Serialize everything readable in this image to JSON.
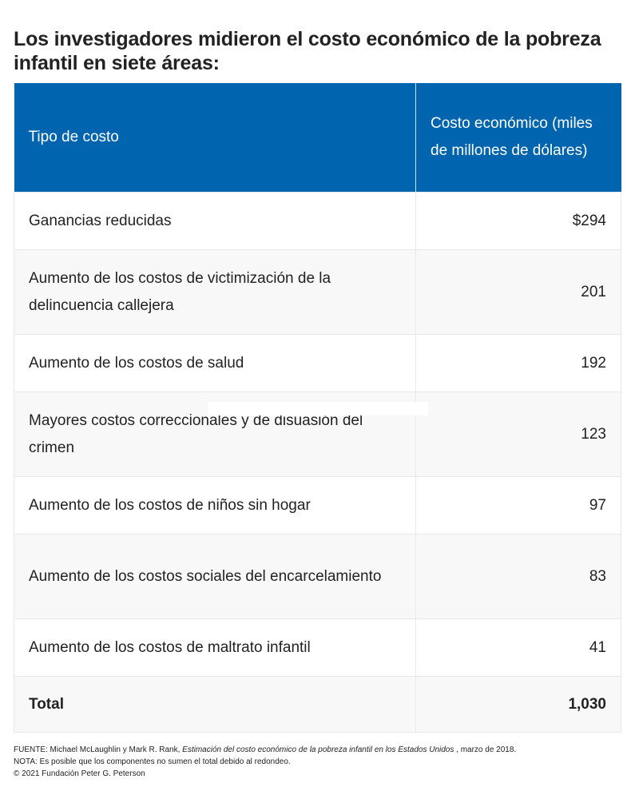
{
  "title": "Los investigadores midieron el costo económico de la pobreza infantil en siete áreas:",
  "table": {
    "headers": [
      "Tipo de costo",
      "Costo económico (miles de millones de dólares)"
    ],
    "rows": [
      {
        "label": "Ganancias reducidas",
        "value": "$294"
      },
      {
        "label": "Aumento de los costos de victimización de la delincuencia callejera",
        "value": "201"
      },
      {
        "label": "Aumento de los costos de salud",
        "value": "192"
      },
      {
        "label": "Mayores costos correccionales y de disuasión del crimen",
        "value": "123"
      },
      {
        "label": "Aumento de los costos de niños sin hogar",
        "value": "97"
      },
      {
        "label": "Aumento de los costos sociales del encarcelamiento",
        "value": "83"
      },
      {
        "label": "Aumento de los costos de maltrato infantil",
        "value": "41"
      }
    ],
    "total": {
      "label": "Total",
      "value": "1,030"
    }
  },
  "footer": {
    "source_prefix": "FUENTE: Michael McLaughlin y Mark R. Rank, ",
    "source_title": "Estimación del costo económico de la pobreza infantil en los Estados Unidos",
    "source_suffix": " , marzo de 2018.",
    "note": "NOTA: Es posible que los componentes no sumen el total debido al redondeo.",
    "copyright": "© 2021 Fundación Peter G. Peterson"
  },
  "colors": {
    "header_bg": "#0064ae",
    "row_alt": "#f8f8f8",
    "border": "#e8e8e8"
  }
}
